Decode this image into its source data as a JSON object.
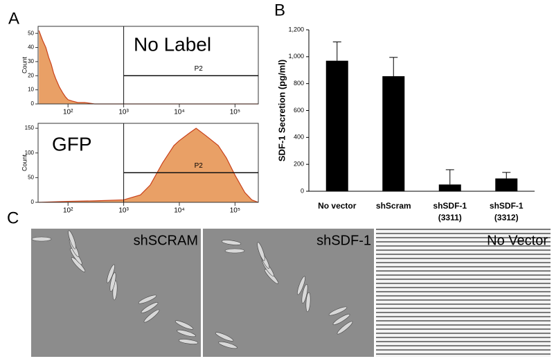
{
  "panel_labels": [
    "A",
    "B",
    "C"
  ],
  "chart_data": [
    {
      "type": "histogram-area",
      "annotation": "No Label",
      "y_label": "Count",
      "xscale": "log",
      "x": [
        30,
        35,
        40,
        45,
        50,
        55,
        60,
        70,
        80,
        90,
        100,
        120,
        150,
        200,
        300,
        500,
        1000,
        3000,
        10000,
        100000,
        262144
      ],
      "values": [
        52,
        45,
        40,
        33,
        28,
        22,
        18,
        12,
        8,
        5,
        3,
        2,
        1,
        1,
        0,
        0,
        0,
        0,
        0,
        0,
        0
      ],
      "color": "#e9a066",
      "line_color": "#c8401a",
      "xlim": [
        29,
        262144
      ],
      "ylim": [
        0,
        55
      ],
      "xticks": [
        {
          "value": 100,
          "label": "10²"
        },
        {
          "value": 1000,
          "label": "10³"
        },
        {
          "value": 10000,
          "label": "10⁴"
        },
        {
          "value": 100000,
          "label": "10⁵"
        }
      ],
      "yticks": [
        0,
        10,
        20,
        30,
        40,
        50
      ],
      "gate": {
        "label": "P2",
        "x": 1000,
        "y": 20
      }
    },
    {
      "type": "histogram-area",
      "annotation": "GFP",
      "y_label": "Count",
      "xscale": "log",
      "x": [
        30,
        100,
        300,
        1000,
        2000,
        3000,
        5000,
        8000,
        10000,
        15000,
        20000,
        30000,
        50000,
        70000,
        100000,
        150000,
        200000,
        262144
      ],
      "values": [
        0,
        2,
        3,
        5,
        15,
        35,
        80,
        115,
        125,
        140,
        150,
        135,
        115,
        90,
        55,
        20,
        5,
        0
      ],
      "color": "#e9a066",
      "line_color": "#c8401a",
      "xlim": [
        29,
        262144
      ],
      "ylim": [
        0,
        160
      ],
      "xticks": [
        {
          "value": 100,
          "label": "10²"
        },
        {
          "value": 1000,
          "label": "10³"
        },
        {
          "value": 10000,
          "label": "10⁴"
        },
        {
          "value": 100000,
          "label": "10⁵"
        }
      ],
      "yticks": [
        0,
        50,
        100,
        150
      ],
      "gate": {
        "label": "P2",
        "x": 1000,
        "y": 60
      }
    },
    {
      "type": "bar",
      "y_label": "SDF-1 Secretion (pg/ml)",
      "categories": [
        [
          "No vector"
        ],
        [
          "shScram"
        ],
        [
          "shSDF-1",
          "(3311)"
        ],
        [
          "shSDF-1",
          "(3312)"
        ]
      ],
      "values": [
        970,
        855,
        50,
        95
      ],
      "errors": [
        140,
        140,
        110,
        45
      ],
      "color": "#000000",
      "ylim": [
        0,
        1200
      ],
      "yticks": [
        0,
        200,
        400,
        600,
        800,
        {
          "value": 1000,
          "label": "1,000"
        },
        {
          "value": 1200,
          "label": "1,200"
        }
      ]
    }
  ],
  "images": [
    {
      "label": "shSCRAM"
    },
    {
      "label": "shSDF-1"
    },
    {
      "label": "No Vector"
    }
  ]
}
